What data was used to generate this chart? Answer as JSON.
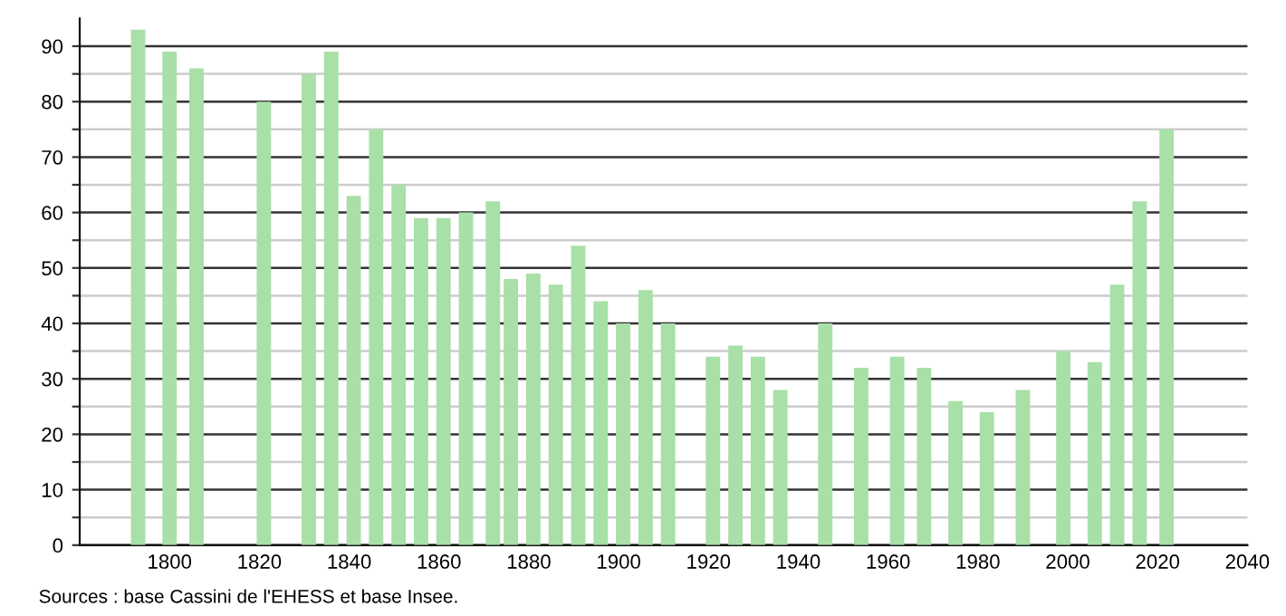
{
  "chart_data": {
    "type": "bar",
    "x": [
      1793,
      1800,
      1806,
      1821,
      1831,
      1836,
      1841,
      1846,
      1851,
      1856,
      1861,
      1866,
      1872,
      1876,
      1881,
      1886,
      1891,
      1896,
      1901,
      1906,
      1911,
      1921,
      1926,
      1931,
      1936,
      1946,
      1954,
      1962,
      1968,
      1975,
      1982,
      1990,
      1999,
      2006,
      2011,
      2016,
      2022
    ],
    "values": [
      93,
      89,
      86,
      80,
      85,
      89,
      63,
      75,
      65,
      59,
      59,
      60,
      62,
      48,
      49,
      47,
      54,
      44,
      40,
      46,
      40,
      34,
      36,
      34,
      28,
      40,
      32,
      34,
      32,
      26,
      24,
      28,
      35,
      33,
      47,
      62,
      75
    ],
    "color": "#a8e0a8",
    "xlim": [
      1780,
      2040
    ],
    "xticks": [
      1800,
      1820,
      1840,
      1860,
      1880,
      1900,
      1920,
      1940,
      1960,
      1980,
      2000,
      2020,
      2040
    ],
    "ylim": [
      0,
      95
    ],
    "yticks": [
      0,
      {
        "value": 5,
        "label": null
      },
      10,
      {
        "value": 15,
        "label": null
      },
      20,
      {
        "value": 25,
        "label": null
      },
      30,
      {
        "value": 35,
        "label": null
      },
      40,
      {
        "value": 45,
        "label": null
      },
      50,
      {
        "value": 55,
        "label": null
      },
      60,
      {
        "value": 65,
        "label": null
      },
      70,
      {
        "value": 75,
        "label": null
      },
      80,
      {
        "value": 85,
        "label": null
      },
      90
    ],
    "grid": "y",
    "annotations": [
      "Sources : base Cassini de l'EHESS et base Insee."
    ]
  }
}
